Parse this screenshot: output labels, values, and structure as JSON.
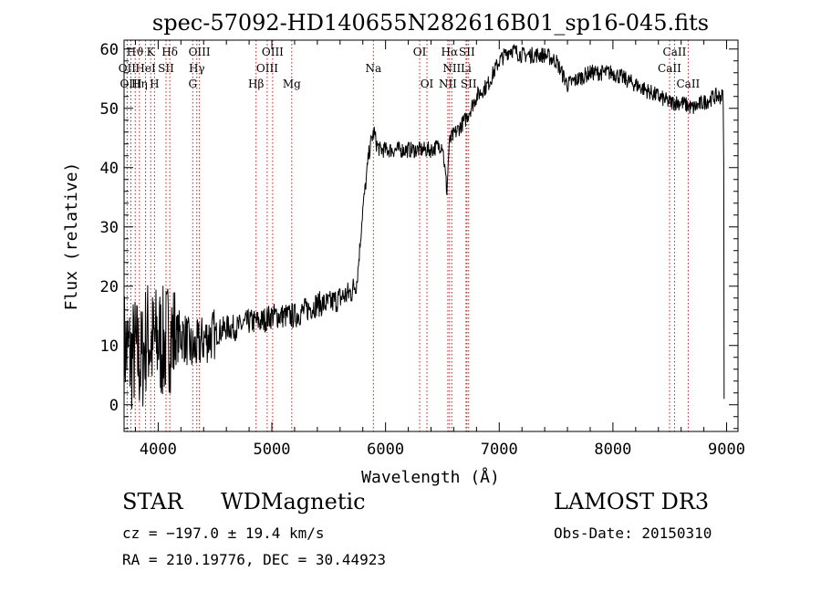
{
  "chart_data": {
    "type": "line",
    "title": "spec-57092-HD140655N282616B01_sp16-045.fits",
    "xlabel": "Wavelength (Å)",
    "ylabel": "Flux (relative)",
    "xlim": [
      3700,
      9100
    ],
    "ylim": [
      -4.5,
      61.5
    ],
    "xticks": [
      4000,
      5000,
      6000,
      7000,
      8000,
      9000
    ],
    "yticks": [
      0,
      10,
      20,
      30,
      40,
      50,
      60
    ],
    "series": [
      {
        "name": "flux",
        "x": [
          3700,
          3760,
          3800,
          3850,
          3900,
          3950,
          4000,
          4050,
          4100,
          4150,
          4200,
          4250,
          4300,
          4350,
          4400,
          4500,
          4600,
          4700,
          4800,
          4900,
          5000,
          5100,
          5200,
          5300,
          5400,
          5500,
          5600,
          5700,
          5750,
          5780,
          5800,
          5830,
          5850,
          5880,
          5900,
          5920,
          5950,
          6000,
          6100,
          6200,
          6300,
          6400,
          6500,
          6540,
          6560,
          6580,
          6620,
          6700,
          6800,
          6900,
          7000,
          7100,
          7200,
          7300,
          7400,
          7500,
          7600,
          7700,
          7800,
          7900,
          8000,
          8100,
          8200,
          8300,
          8400,
          8500,
          8600,
          8700,
          8800,
          8900,
          8970,
          8975,
          8978
        ],
        "y": [
          10,
          8,
          9,
          7,
          12,
          10,
          11,
          10,
          12,
          11,
          12,
          11,
          9,
          10,
          11,
          12,
          13,
          13,
          14,
          14,
          15,
          15,
          15,
          16,
          17,
          17,
          18,
          19,
          21,
          28,
          33,
          38,
          42,
          45,
          46,
          44,
          43,
          43,
          43,
          43,
          43,
          43,
          44,
          36,
          44,
          45,
          46,
          48,
          52,
          54,
          58,
          60,
          59,
          59,
          59,
          58,
          54,
          55,
          56,
          56,
          56,
          55,
          54,
          53,
          52,
          51,
          51,
          50,
          51,
          52,
          52,
          40,
          1
        ]
      }
    ],
    "spectral_lines": [
      {
        "label": "Hϑ",
        "x": 3798,
        "row": 1
      },
      {
        "label": "OII",
        "x": 3727,
        "row": 2
      },
      {
        "label": "OIII",
        "x": 3760,
        "row": 3
      },
      {
        "label": "Hη",
        "x": 3835,
        "row": 3
      },
      {
        "label": "K",
        "x": 3934,
        "row": 1
      },
      {
        "label": "HeI",
        "x": 3889,
        "row": 2
      },
      {
        "label": "H",
        "x": 3968,
        "row": 3
      },
      {
        "label": "Hδ",
        "x": 4102,
        "row": 1
      },
      {
        "label": "SII",
        "x": 4069,
        "row": 2
      },
      {
        "label": "OIII",
        "x": 4363,
        "row": 1
      },
      {
        "label": "Hγ",
        "x": 4340,
        "row": 2
      },
      {
        "label": "G",
        "x": 4304,
        "row": 3
      },
      {
        "label": "Hβ",
        "x": 4861,
        "row": 3
      },
      {
        "label": "OIII",
        "x": 4959,
        "row": 2
      },
      {
        "label": "OIII",
        "x": 5007,
        "row": 1
      },
      {
        "label": "Mg",
        "x": 5175,
        "row": 3
      },
      {
        "label": "Na",
        "x": 5893,
        "row": 2
      },
      {
        "label": "OI",
        "x": 6300,
        "row": 1
      },
      {
        "label": "OI",
        "x": 6364,
        "row": 3
      },
      {
        "label": "NII",
        "x": 6548,
        "row": 3
      },
      {
        "label": "Hα",
        "x": 6563,
        "row": 1
      },
      {
        "label": "NII",
        "x": 6583,
        "row": 2
      },
      {
        "label": "SII",
        "x": 6716,
        "row": 1
      },
      {
        "label": "Li",
        "x": 6708,
        "row": 2
      },
      {
        "label": "SII",
        "x": 6731,
        "row": 3
      },
      {
        "label": "CaII",
        "x": 8498,
        "row": 2
      },
      {
        "label": "CaII",
        "x": 8542,
        "row": 1
      },
      {
        "label": "CaII",
        "x": 8662,
        "row": 3
      }
    ]
  },
  "info": {
    "class": "STAR",
    "subclass": "WDMagnetic",
    "survey": "LAMOST DR3",
    "cz": "cz = −197.0 ± 19.4 km/s",
    "obs_date": "Obs-Date: 20150310",
    "radec": "RA = 210.19776, DEC =  30.44923"
  }
}
